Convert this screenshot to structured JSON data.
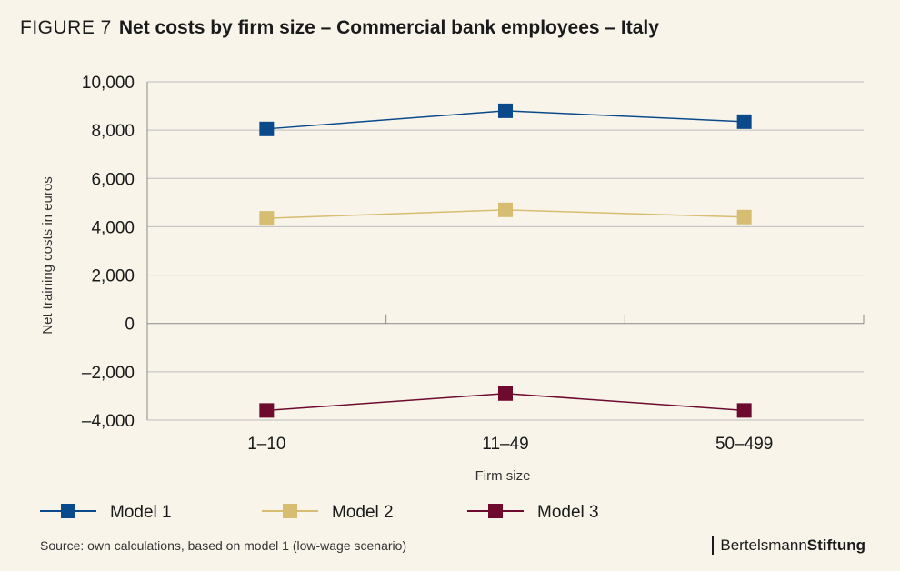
{
  "figure_label": "FIGURE 7",
  "title": "Net costs by firm size – Commercial bank employees – Italy",
  "source": "Source: own calculations, based on model 1 (low-wage scenario)",
  "brand": {
    "part1": "Bertelsmann",
    "part2": "Stiftung"
  },
  "colors": {
    "background": "#f8f4ea",
    "grid": "#bdbdbd"
  },
  "chart_data": {
    "type": "line",
    "categories": [
      "1–10",
      "11–49",
      "50–499"
    ],
    "xlabel": "Firm size",
    "ylabel": "Net training costs in euros",
    "ylim": [
      -4000,
      10000
    ],
    "yticks": [
      10000,
      8000,
      6000,
      4000,
      2000,
      0,
      -2000,
      -4000
    ],
    "ytick_labels": [
      "10,000",
      "8,000",
      "6,000",
      "4,000",
      "2,000",
      "0",
      "–2,000",
      "–4,000"
    ],
    "grid": true,
    "legend_position": "bottom",
    "series": [
      {
        "name": "Model 1",
        "values": [
          8050,
          8800,
          8350
        ],
        "color": "#0b4a8a"
      },
      {
        "name": "Model 2",
        "values": [
          4350,
          4700,
          4400
        ],
        "color": "#d6bd72"
      },
      {
        "name": "Model 3",
        "values": [
          -3600,
          -2900,
          -3600
        ],
        "color": "#6e0a2e"
      }
    ]
  }
}
